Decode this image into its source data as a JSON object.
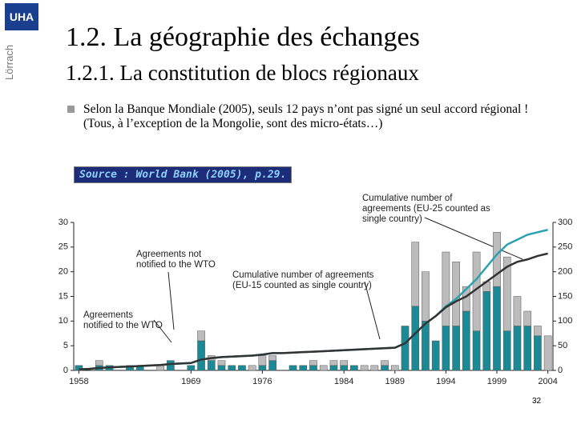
{
  "title": "1.2. La géographie des échanges",
  "subtitle": "1.2.1. La constitution de blocs régionaux",
  "bullet": "Selon la Banque Mondiale (2005), seuls 12 pays n’ont pas signé un seul accord régional ! (Tous, à l’exception de la Mongolie, sont des micro-états…)",
  "source": "Source : World Bank (2005), p.29.",
  "page_number": "32",
  "logos": [
    "UHA",
    "Lörrach"
  ],
  "chart_data": {
    "type": "bar",
    "x": [
      1958,
      1959,
      1960,
      1961,
      1962,
      1963,
      1964,
      1965,
      1966,
      1967,
      1968,
      1969,
      1970,
      1971,
      1972,
      1973,
      1974,
      1975,
      1976,
      1977,
      1978,
      1979,
      1980,
      1981,
      1982,
      1983,
      1984,
      1985,
      1986,
      1987,
      1988,
      1989,
      1990,
      1991,
      1992,
      1993,
      1994,
      1995,
      1996,
      1997,
      1998,
      1999,
      2000,
      2001,
      2002,
      2003,
      2004
    ],
    "xlim": [
      1957.5,
      2004.5
    ],
    "xticks": [
      1958,
      1969,
      1976,
      1984,
      1989,
      1994,
      1999,
      2004
    ],
    "ylim": [
      0,
      30
    ],
    "yticks": [
      0,
      5,
      10,
      15,
      20,
      25,
      30
    ],
    "y2lim": [
      0,
      300
    ],
    "y2ticks": [
      0,
      50,
      100,
      150,
      200,
      250,
      300
    ],
    "series": [
      {
        "name": "Agreements notified to the WTO",
        "color": "#1b8a96",
        "values": [
          1,
          0,
          1,
          1,
          0,
          1,
          1,
          0,
          0,
          2,
          0,
          1,
          6,
          2,
          1,
          1,
          1,
          0,
          1,
          2,
          0,
          1,
          1,
          1,
          0,
          1,
          1,
          1,
          0,
          0,
          1,
          0,
          9,
          13,
          10,
          6,
          9,
          9,
          12,
          8,
          16,
          17,
          8,
          9,
          9,
          7,
          0
        ]
      },
      {
        "name": "Agreements not notified to the WTO",
        "color": "#bcbcbc",
        "values": [
          0,
          0,
          1,
          0,
          0,
          0,
          0,
          0,
          1,
          0,
          0,
          0,
          2,
          1,
          1,
          0,
          0,
          1,
          2,
          1,
          0,
          0,
          0,
          1,
          1,
          1,
          1,
          0,
          1,
          1,
          1,
          1,
          0,
          13,
          10,
          0,
          15,
          13,
          5,
          16,
          2,
          11,
          15,
          6,
          3,
          2,
          7
        ]
      },
      {
        "name": "Cumulative number of agreements (EU-15 counted as single country)",
        "color": "#2aa0b0",
        "axis": "y2",
        "values": [
          2,
          3,
          5,
          6,
          7,
          8,
          9,
          10,
          11,
          13,
          14,
          15,
          22,
          25,
          27,
          28,
          29,
          30,
          32,
          35,
          35,
          36,
          37,
          38,
          39,
          40,
          41,
          42,
          43,
          44,
          45,
          46,
          55,
          75,
          95,
          110,
          130,
          145,
          165,
          185,
          210,
          235,
          255,
          265,
          275,
          280,
          285
        ]
      },
      {
        "name": "Cumulative number of agreements (EU-25 counted as single country)",
        "color": "#333333",
        "axis": "y2",
        "values": [
          2,
          3,
          5,
          6,
          7,
          8,
          9,
          10,
          11,
          13,
          14,
          15,
          22,
          25,
          27,
          28,
          29,
          30,
          32,
          35,
          35,
          36,
          37,
          38,
          39,
          40,
          41,
          42,
          43,
          44,
          45,
          46,
          55,
          75,
          95,
          110,
          128,
          140,
          150,
          165,
          180,
          195,
          210,
          220,
          225,
          232,
          237
        ]
      }
    ]
  }
}
